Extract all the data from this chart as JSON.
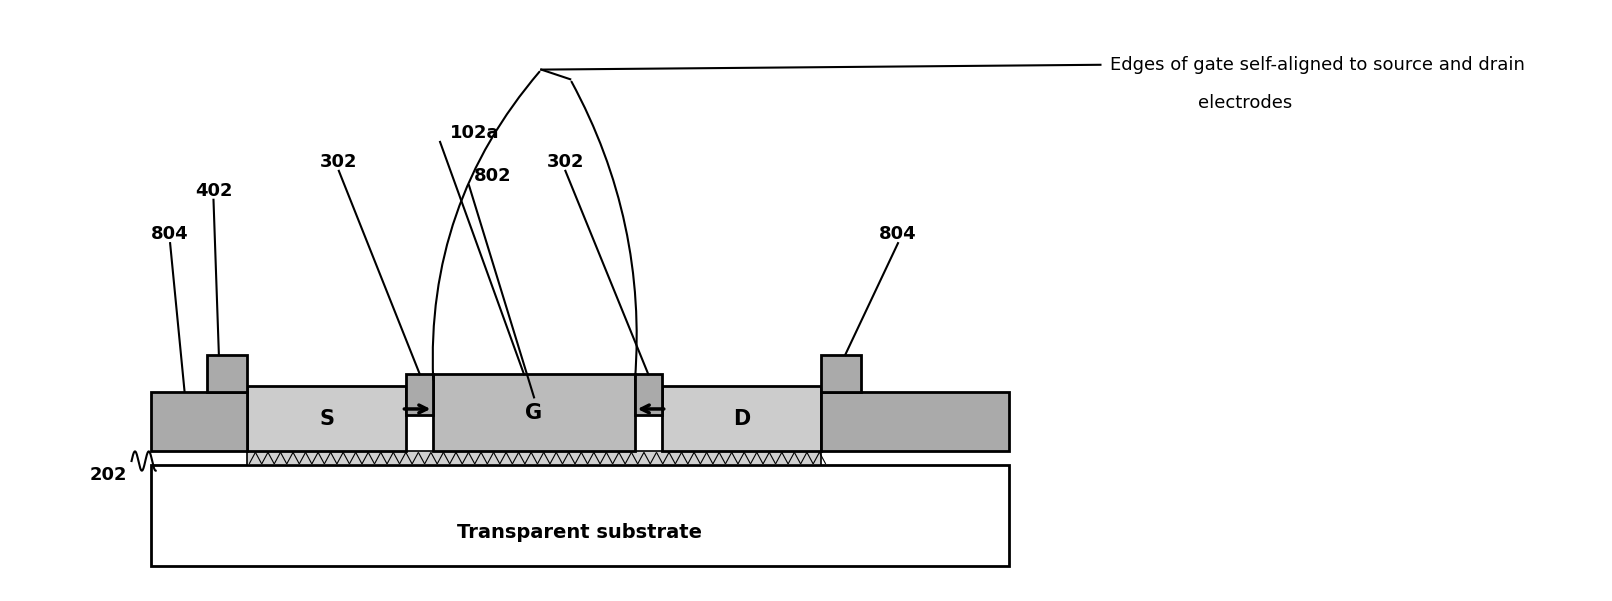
{
  "bg_color": "#ffffff",
  "black": "#000000",
  "white": "#ffffff",
  "gray_dark": "#aaaaaa",
  "gray_light": "#cccccc",
  "gray_med": "#bbbbbb",
  "annotation_line1": "Edges of gate self-aligned to source and drain",
  "annotation_line2": "electrodes",
  "label_202": "202",
  "label_402": "402",
  "label_804_left": "804",
  "label_804_right": "804",
  "label_302_left": "302",
  "label_302_right": "302",
  "label_102a": "102a",
  "label_802": "802",
  "label_S": "S",
  "label_G": "G",
  "label_D": "D",
  "substrate_label": "Transparent substrate",
  "figw": 16.12,
  "figh": 6.01,
  "dpi": 100
}
